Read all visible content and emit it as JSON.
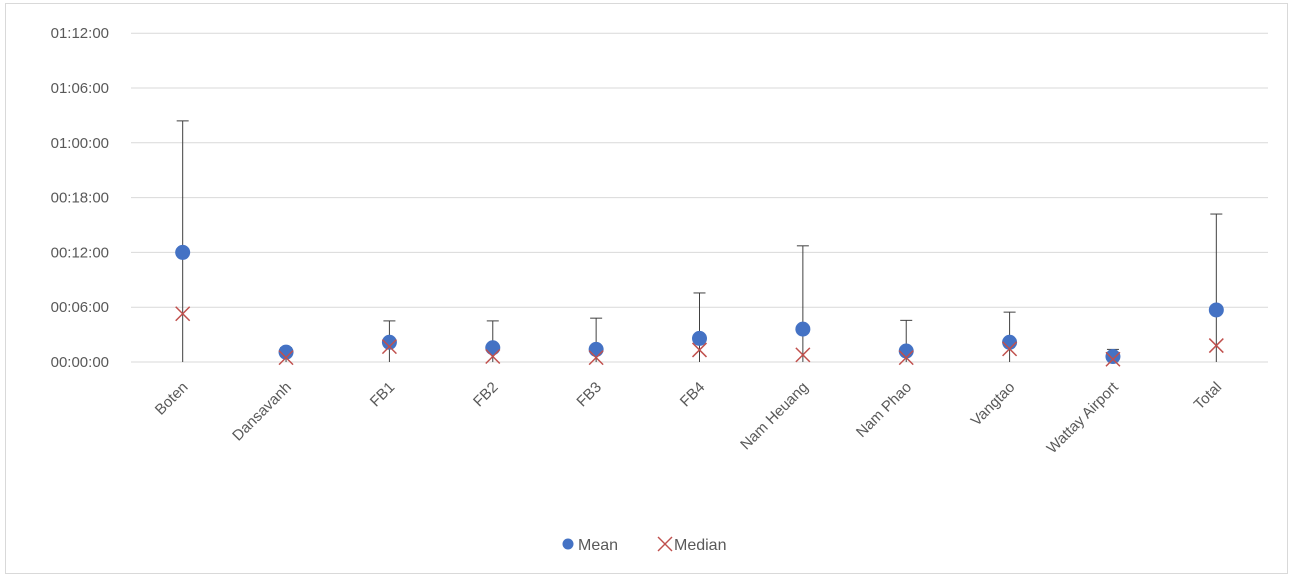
{
  "chart_data": {
    "type": "scatter",
    "title": "",
    "xlabel": "",
    "ylabel": "",
    "categories": [
      "Boten",
      "Dansavanh",
      "FB1",
      "FB2",
      "FB3",
      "FB4",
      "Nam Heuang",
      "Nam Phao",
      "Vangtao",
      "Wattay Airport",
      "Total"
    ],
    "y_tick_labels": [
      "00:00:00",
      "00:06:00",
      "01:00:00",
      "00:18:00",
      "00:12:00",
      "01:06:00",
      "01:12:00"
    ],
    "y_tick_labels_order_note": "",
    "y_ticks": [
      "00:00:00",
      "00:06:00",
      "00:12:00",
      "00:18:00",
      "01:00:00",
      "01:06:00",
      "01:12:00"
    ],
    "ylim_ticks_index": [
      0,
      6
    ],
    "grid": true,
    "legend_position": "bottom",
    "series": [
      {
        "name": "Mean",
        "marker": "circle",
        "color": "#4472c4",
        "values_tick_units": [
          2.0,
          0.18,
          0.36,
          0.26,
          0.23,
          0.43,
          0.6,
          0.2,
          0.36,
          0.1,
          0.95
        ]
      },
      {
        "name": "Median",
        "marker": "x",
        "color": "#c0504d",
        "values_tick_units": [
          0.88,
          0.08,
          0.28,
          0.1,
          0.08,
          0.22,
          0.13,
          0.08,
          0.24,
          0.05,
          0.3
        ]
      }
    ],
    "error_bar_top_tick_units": [
      4.4,
      0.26,
      0.75,
      0.75,
      0.8,
      1.26,
      2.12,
      0.76,
      0.91,
      0.23,
      2.7
    ],
    "error_bar_color": "#404040"
  },
  "legend": {
    "mean_label": "Mean",
    "median_label": "Median"
  }
}
